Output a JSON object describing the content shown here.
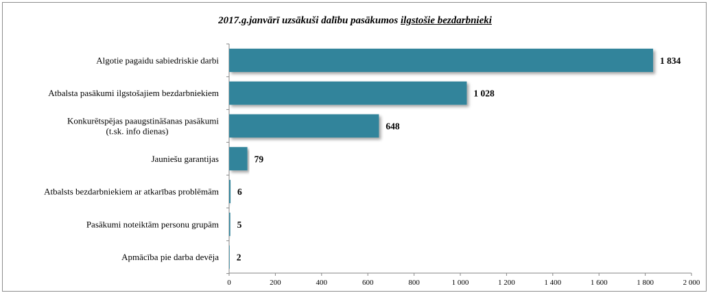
{
  "chart_data": {
    "type": "bar",
    "orientation": "horizontal",
    "title_part1": "2017.g.janvārī uzsākuši dalību pasākumos ",
    "title_part2": "ilgstošie bezdarbnieki",
    "categories": [
      [
        "Algotie pagaidu sabiedriskie darbi"
      ],
      [
        "Atbalsta pasākumi ilgstošajiem bezdarbniekiem"
      ],
      [
        "Konkurētspējas paaugstināšanas pasākumi",
        "(t.sk. info dienas)"
      ],
      [
        "Jauniešu garantijas"
      ],
      [
        "Atbalsts bezdarbniekiem ar atkarības problēmām"
      ],
      [
        "Pasākumi noteiktām personu grupām"
      ],
      [
        "Apmācība pie darba devēja"
      ]
    ],
    "values": [
      1834,
      1028,
      648,
      79,
      6,
      5,
      2
    ],
    "value_labels": [
      "1 834",
      "1 028",
      "648",
      "79",
      "6",
      "5",
      "2"
    ],
    "xlim": [
      0,
      2000
    ],
    "x_ticks": [
      0,
      200,
      400,
      600,
      800,
      1000,
      1200,
      1400,
      1600,
      1800,
      2000
    ],
    "x_tick_labels": [
      "0",
      "200",
      "400",
      "600",
      "800",
      "1 000",
      "1 200",
      "1 400",
      "1 600",
      "1 800",
      "2 000"
    ],
    "bar_color": "#31849B",
    "grid": false,
    "legend": "none"
  }
}
